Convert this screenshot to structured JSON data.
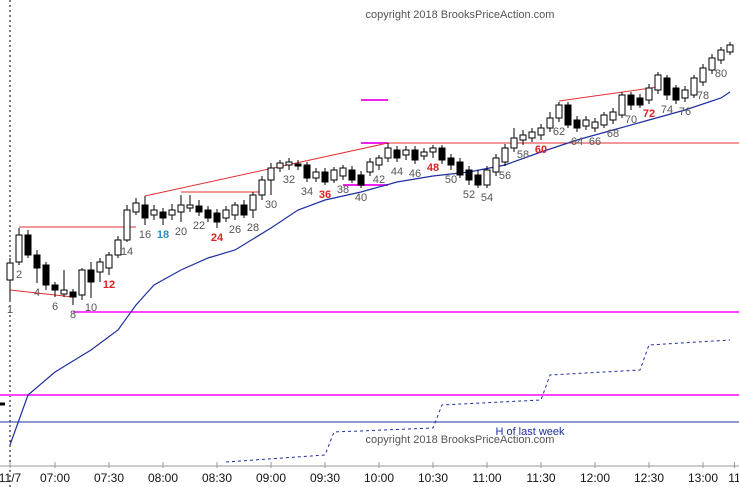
{
  "chart_data": {
    "type": "candlestick",
    "watermark": "copyright 2018 BrooksPriceAction.com",
    "annotation": "H of last week",
    "categories": [
      "1",
      "2",
      null,
      "4",
      null,
      "6",
      null,
      "8",
      null,
      "10",
      null,
      "12",
      null,
      "14",
      null,
      "16",
      null,
      "18",
      null,
      "20",
      null,
      "22",
      null,
      "24",
      null,
      "26",
      null,
      "28",
      null,
      "30",
      null,
      "32",
      null,
      "34",
      null,
      "36",
      null,
      "38",
      null,
      "40",
      null,
      "42",
      null,
      "44",
      null,
      "46",
      null,
      "48",
      null,
      "50",
      null,
      "52",
      null,
      "54",
      null,
      "56",
      null,
      "58",
      null,
      "60",
      null,
      "62",
      null,
      "64",
      null,
      "66",
      null,
      "68",
      null,
      "70",
      null,
      "72",
      null,
      "74",
      null,
      "76",
      null,
      "78",
      null,
      "80",
      null
    ],
    "ohlc": [
      [
        182,
        204,
        162,
        199
      ],
      [
        200,
        234,
        197,
        227
      ],
      [
        227,
        232,
        204,
        207
      ],
      [
        207,
        212,
        179,
        194
      ],
      [
        197,
        200,
        172,
        177
      ],
      [
        177,
        180,
        165,
        172
      ],
      [
        168,
        192,
        165,
        172
      ],
      [
        170,
        173,
        157,
        165
      ],
      [
        167,
        194,
        162,
        192
      ],
      [
        192,
        200,
        164,
        180
      ],
      [
        190,
        204,
        180,
        200
      ],
      [
        194,
        210,
        187,
        207
      ],
      [
        207,
        226,
        204,
        222
      ],
      [
        222,
        257,
        220,
        252
      ],
      [
        250,
        264,
        247,
        259
      ],
      [
        257,
        266,
        237,
        244
      ],
      [
        247,
        257,
        242,
        252
      ],
      [
        250,
        254,
        237,
        244
      ],
      [
        247,
        258,
        242,
        252
      ],
      [
        250,
        267,
        240,
        257
      ],
      [
        254,
        267,
        250,
        257
      ],
      [
        256,
        262,
        246,
        250
      ],
      [
        252,
        256,
        240,
        244
      ],
      [
        249,
        253,
        234,
        240
      ],
      [
        244,
        256,
        240,
        252
      ],
      [
        247,
        260,
        242,
        257
      ],
      [
        257,
        262,
        244,
        247
      ],
      [
        252,
        270,
        244,
        267
      ],
      [
        267,
        286,
        262,
        282
      ],
      [
        282,
        299,
        267,
        294
      ],
      [
        294,
        302,
        290,
        299
      ],
      [
        297,
        304,
        292,
        300
      ],
      [
        298,
        302,
        292,
        296
      ],
      [
        297,
        300,
        280,
        284
      ],
      [
        284,
        294,
        280,
        290
      ],
      [
        290,
        294,
        277,
        280
      ],
      [
        282,
        295,
        279,
        292
      ],
      [
        286,
        297,
        282,
        294
      ],
      [
        292,
        296,
        279,
        282
      ],
      [
        287,
        291,
        274,
        277
      ],
      [
        290,
        304,
        286,
        300
      ],
      [
        297,
        307,
        292,
        304
      ],
      [
        304,
        319,
        300,
        314
      ],
      [
        312,
        316,
        300,
        304
      ],
      [
        307,
        316,
        302,
        312
      ],
      [
        312,
        316,
        298,
        302
      ],
      [
        306,
        314,
        302,
        310
      ],
      [
        310,
        317,
        304,
        314
      ],
      [
        314,
        317,
        298,
        302
      ],
      [
        304,
        308,
        292,
        297
      ],
      [
        300,
        304,
        284,
        287
      ],
      [
        292,
        296,
        277,
        282
      ],
      [
        287,
        292,
        274,
        277
      ],
      [
        277,
        296,
        274,
        292
      ],
      [
        290,
        308,
        286,
        304
      ],
      [
        300,
        318,
        296,
        314
      ],
      [
        314,
        334,
        310,
        324
      ],
      [
        322,
        332,
        317,
        327
      ],
      [
        324,
        334,
        320,
        330
      ],
      [
        327,
        338,
        322,
        334
      ],
      [
        334,
        350,
        330,
        344
      ],
      [
        344,
        360,
        340,
        357
      ],
      [
        357,
        360,
        334,
        337
      ],
      [
        342,
        346,
        330,
        334
      ],
      [
        336,
        346,
        332,
        342
      ],
      [
        334,
        344,
        330,
        340
      ],
      [
        337,
        350,
        334,
        347
      ],
      [
        342,
        354,
        338,
        350
      ],
      [
        347,
        370,
        344,
        367
      ],
      [
        367,
        370,
        352,
        357
      ],
      [
        364,
        368,
        354,
        357
      ],
      [
        362,
        378,
        358,
        374
      ],
      [
        372,
        390,
        368,
        387
      ],
      [
        384,
        387,
        362,
        367
      ],
      [
        374,
        377,
        358,
        362
      ],
      [
        364,
        376,
        360,
        372
      ],
      [
        367,
        387,
        364,
        384
      ],
      [
        380,
        398,
        376,
        394
      ],
      [
        392,
        408,
        388,
        404
      ],
      [
        402,
        415,
        398,
        412
      ],
      [
        410,
        420,
        407,
        417
      ]
    ],
    "up_color": "#ffffff",
    "down_color": "#000000",
    "label_color": "#555555",
    "label_color_overrides": [
      {
        "index": 11,
        "color": "#dd2222"
      },
      {
        "index": 17,
        "color": "#2a8fc8"
      },
      {
        "index": 23,
        "color": "#dd2222"
      },
      {
        "index": 35,
        "color": "#dd2222"
      },
      {
        "index": 47,
        "color": "#dd2222"
      },
      {
        "index": 59,
        "color": "#dd2222"
      },
      {
        "index": 71,
        "color": "#dd2222"
      }
    ],
    "ylim": [
      0,
      462
    ],
    "xticks": [
      {
        "value": 0,
        "label": "11/7"
      },
      {
        "value": 5,
        "label": "07:00"
      },
      {
        "value": 11,
        "label": "07:30"
      },
      {
        "value": 17,
        "label": "08:00"
      },
      {
        "value": 23,
        "label": "08:30"
      },
      {
        "value": 29,
        "label": "09:00"
      },
      {
        "value": 35,
        "label": "09:30"
      },
      {
        "value": 41,
        "label": "10:00"
      },
      {
        "value": 47,
        "label": "10:30"
      },
      {
        "value": 53,
        "label": "11:00"
      },
      {
        "value": 59,
        "label": "11:30"
      },
      {
        "value": 65,
        "label": "12:00"
      },
      {
        "value": 71,
        "label": "12:30"
      },
      {
        "value": 77,
        "label": "13:00"
      },
      {
        "value": 80.5,
        "label": "11"
      }
    ],
    "series": [
      {
        "color": "#1f2fa0",
        "dash": false,
        "x": [
          0,
          2,
          5,
          9,
          12,
          14,
          16,
          19,
          22,
          25,
          29,
          32,
          35,
          39,
          43,
          47,
          51,
          55,
          59,
          63,
          67,
          71,
          75,
          79,
          80
        ],
        "values": [
          17,
          67,
          90,
          112,
          132,
          157,
          177,
          192,
          204,
          212,
          234,
          252,
          262,
          270,
          280,
          286,
          290,
          297,
          310,
          322,
          332,
          342,
          352,
          364,
          370
        ]
      },
      {
        "color": "#1f2fa0",
        "dash": true,
        "x": [
          24,
          35,
          36,
          47,
          48,
          59,
          60,
          70,
          71,
          80
        ],
        "values": [
          0,
          7,
          30,
          34,
          57,
          62,
          87,
          92,
          117,
          122
        ]
      }
    ],
    "lines": [
      {
        "color": "#ff44ff",
        "width": 2,
        "x": [
          7,
          81.2
        ],
        "values": [
          150,
          150
        ]
      },
      {
        "color": "#ff44ff",
        "width": 2,
        "x": [
          -1.2,
          81.2
        ],
        "values": [
          67,
          67
        ]
      },
      {
        "color": "#2030a0",
        "width": 1,
        "x": [
          -1.2,
          81.2
        ],
        "values": [
          40,
          40
        ]
      },
      {
        "color": "#ee22ee",
        "width": 2,
        "x": [
          39,
          42
        ],
        "values": [
          362,
          362
        ]
      },
      {
        "color": "#ee22ee",
        "width": 2,
        "x": [
          39,
          42
        ],
        "values": [
          319,
          319
        ]
      },
      {
        "color": "#ee22ee",
        "width": 2,
        "x": [
          37,
          42
        ],
        "values": [
          277,
          277
        ]
      },
      {
        "color": "#e03030",
        "width": 1,
        "x": [
          42,
          81.2
        ],
        "values": [
          319,
          319
        ]
      },
      {
        "color": "#e03030",
        "width": 1,
        "x": [
          1,
          14
        ],
        "values": [
          235,
          235
        ]
      },
      {
        "color": "#e03030",
        "width": 1,
        "x": [
          19,
          28
        ],
        "values": [
          270,
          270
        ]
      },
      {
        "color": "#e03030",
        "width": 1,
        "x": [
          0,
          7
        ],
        "values": [
          172,
          165
        ]
      },
      {
        "color": "#e03030",
        "width": 1,
        "x": [
          15,
          42
        ],
        "values": [
          266,
          319
        ]
      },
      {
        "color": "#e03030",
        "width": 1,
        "x": [
          61,
          72
        ],
        "values": [
          361,
          375
        ]
      }
    ]
  }
}
